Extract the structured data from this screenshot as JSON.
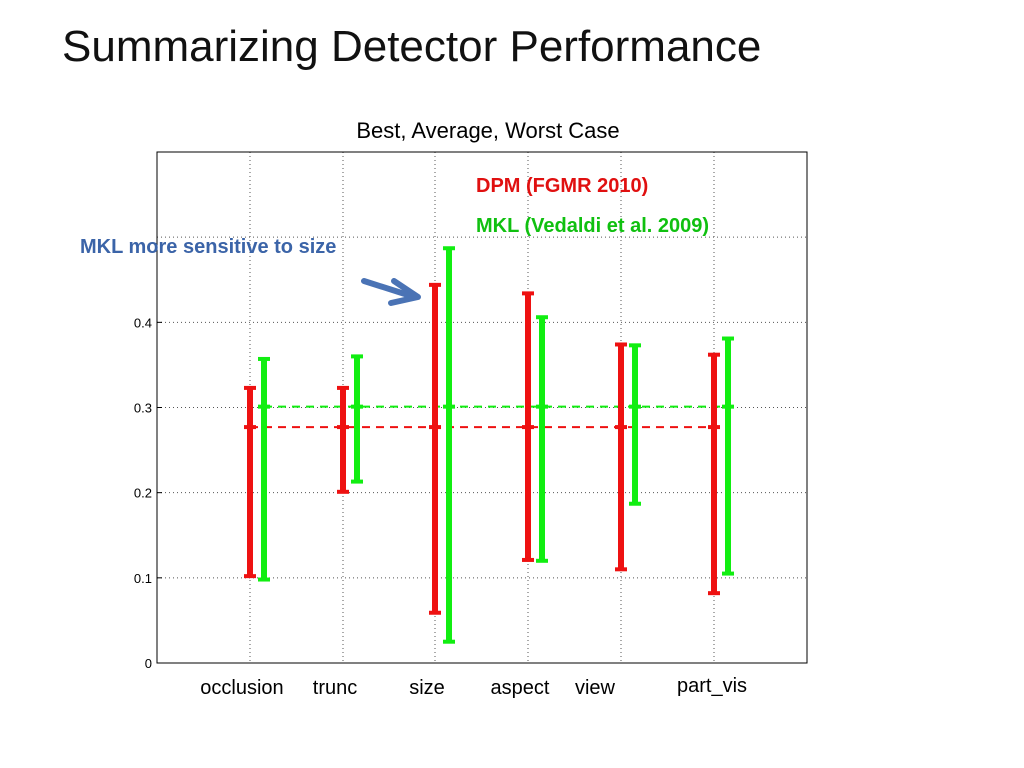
{
  "slide": {
    "title": "Summarizing Detector Performance"
  },
  "annotation": {
    "text": "MKL more sensitive to size",
    "color": "#3b64a8"
  },
  "chart_data": {
    "type": "errorbar",
    "title": "Best, Average, Worst Case",
    "categories": [
      "occlusion",
      "trunc",
      "size",
      "aspect",
      "view",
      "part_vis"
    ],
    "yticks": [
      0,
      0.1,
      0.2,
      0.3,
      0.4
    ],
    "ylim": [
      0,
      0.6
    ],
    "grid": true,
    "legend_position": "top-right",
    "series": [
      {
        "name": "DPM (FGMR 2010)",
        "color": "#ee1111",
        "average": 0.277,
        "best": [
          0.323,
          0.323,
          0.444,
          0.434,
          0.374,
          0.362
        ],
        "worst": [
          0.102,
          0.201,
          0.059,
          0.121,
          0.11,
          0.082
        ]
      },
      {
        "name": "MKL (Vedaldi et al. 2009)",
        "color": "#11ee11",
        "average": 0.301,
        "best": [
          0.357,
          0.36,
          0.487,
          0.406,
          0.373,
          0.381
        ],
        "worst": [
          0.098,
          0.213,
          0.025,
          0.12,
          0.187,
          0.105
        ]
      }
    ]
  }
}
